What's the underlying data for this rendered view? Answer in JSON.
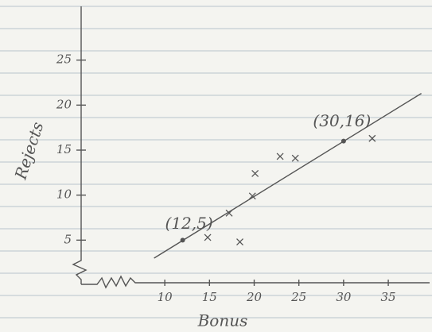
{
  "chart_data": {
    "type": "scatter",
    "x_label": "Bonus",
    "y_label": "Rejects",
    "xlim": [
      1,
      39
    ],
    "ylim": [
      0,
      30
    ],
    "xticks": [
      10,
      15,
      20,
      25,
      30,
      35
    ],
    "yticks": [
      5,
      10,
      15,
      20,
      25
    ],
    "points": {
      "x": [
        14.8,
        17.2,
        18.4,
        19.8,
        20.1,
        22.9,
        24.6,
        33.2
      ],
      "y": [
        5.3,
        8.0,
        4.8,
        9.9,
        12.4,
        14.3,
        14.1,
        16.3
      ]
    },
    "fit_line": {
      "x": [
        8.8,
        38.7
      ],
      "y": [
        3.0,
        21.3
      ]
    },
    "annotations": [
      {
        "text": "(12,5)",
        "x": 12,
        "y": 5
      },
      {
        "text": "(30,16)",
        "x": 30,
        "y": 16
      }
    ],
    "color": "#555555"
  }
}
